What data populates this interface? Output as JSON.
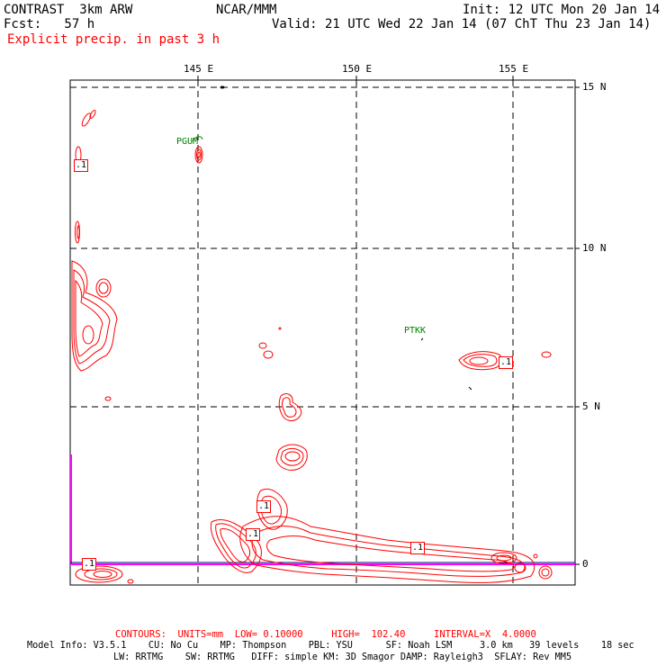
{
  "header": {
    "model": "CONTRAST  3km ARW",
    "center": "NCAR/MMM",
    "init": "Init: 12 UTC Mon 20 Jan 14",
    "fcst": "Fcst:   57 h",
    "valid": "Valid: 21 UTC Wed 22 Jan 14 (07 ChT Thu 23 Jan 14)",
    "field": "Explicit precip. in past 3 h"
  },
  "axes": {
    "lon_labels": [
      "145 E",
      "150 E",
      "155 E"
    ],
    "lat_labels": [
      "15 N",
      "10 N",
      "5 N",
      "0"
    ]
  },
  "stations": [
    {
      "id": "PGUM"
    },
    {
      "id": "PTKK"
    }
  ],
  "contour_labels": [
    ".1",
    ".1",
    ".1",
    ".1",
    ".1",
    ".1"
  ],
  "footer": {
    "contours": "CONTOURS:  UNITS=mm  LOW= 0.10000     HIGH=  102.40     INTERVAL=X  4.0000",
    "model_info_1": "Model Info: V3.5.1    CU: No Cu    MP: Thompson    PBL: YSU      SF: Noah LSM     3.0 km   39 levels    18 sec",
    "model_info_2": "LW: RRTMG    SW: RRTMG   DIFF: simple KM: 3D Smagor DAMP: Rayleigh3  SFLAY: Rev MM5"
  },
  "colors": {
    "contour": "#ff0000",
    "station": "#008000",
    "equator": "#ff00ff",
    "frame": "#000000"
  }
}
